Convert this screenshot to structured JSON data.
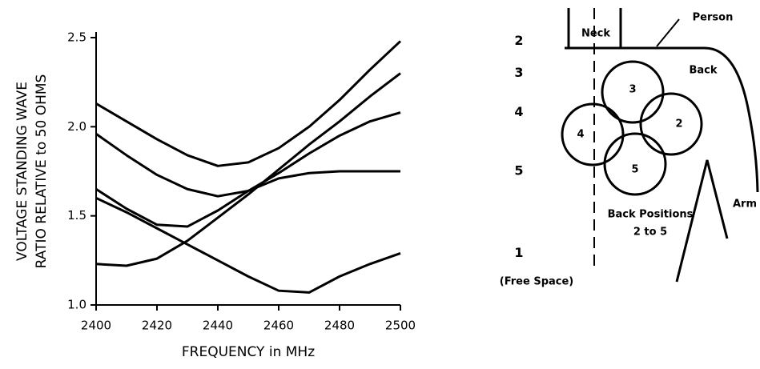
{
  "chart_data": {
    "type": "line",
    "xlabel": "FREQUENCY in MHz",
    "ylabel": [
      "VOLTAGE STANDING WAVE",
      "RATIO RELATIVE to 50 OHMS"
    ],
    "x": [
      2400,
      2410,
      2420,
      2430,
      2440,
      2450,
      2460,
      2470,
      2480,
      2490,
      2500
    ],
    "series": [
      {
        "name": "2",
        "color": "#000000",
        "values": [
          2.13,
          2.03,
          1.93,
          1.84,
          1.78,
          1.8,
          1.88,
          2.0,
          2.15,
          2.32,
          2.48
        ]
      },
      {
        "name": "3",
        "color": "#000000",
        "values": [
          1.23,
          1.22,
          1.26,
          1.36,
          1.49,
          1.62,
          1.76,
          1.9,
          2.03,
          2.17,
          2.3
        ]
      },
      {
        "name": "4",
        "color": "#000000",
        "values": [
          1.96,
          1.84,
          1.73,
          1.65,
          1.61,
          1.64,
          1.74,
          1.85,
          1.95,
          2.03,
          2.08
        ]
      },
      {
        "name": "5",
        "color": "#000000",
        "values": [
          1.65,
          1.54,
          1.45,
          1.44,
          1.53,
          1.64,
          1.71,
          1.74,
          1.75,
          1.75,
          1.75
        ]
      },
      {
        "name": "1",
        "color": "#000000",
        "values": [
          1.6,
          1.52,
          1.43,
          1.34,
          1.25,
          1.16,
          1.08,
          1.07,
          1.16,
          1.23,
          1.29
        ]
      }
    ],
    "annotation": "(Free Space)",
    "xlim": [
      2400,
      2500
    ],
    "xticks": [
      2400,
      2420,
      2440,
      2460,
      2480,
      2500
    ],
    "ylim": [
      1.0,
      2.5
    ],
    "yticks": [
      {
        "value": 1.0,
        "label": "1.0"
      },
      1.5,
      {
        "value": 2.0,
        "label": "2.0"
      },
      2.5
    ],
    "grid": false
  },
  "diagram": {
    "neck": "Neck",
    "person": "Person",
    "back": "Back",
    "positions": [
      "3",
      "2",
      "4",
      "5"
    ],
    "caption": [
      "Back Positions",
      "2 to 5"
    ],
    "arm": "Arm"
  }
}
